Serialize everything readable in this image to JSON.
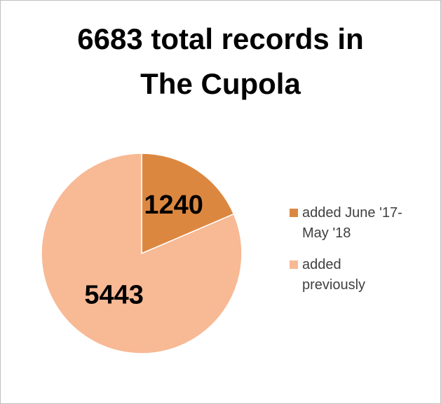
{
  "chart_data": {
    "type": "pie",
    "title_lines": [
      "6683 total records in",
      "The Cupola"
    ],
    "slices": [
      {
        "label": "added June '17-May '18",
        "legend_lines": [
          "added June '17-",
          "May '18"
        ],
        "value": 1240,
        "color": "#dc8740"
      },
      {
        "label": "added previously",
        "legend_lines": [
          "added",
          "previously"
        ],
        "value": 5443,
        "color": "#f8b995"
      }
    ],
    "legend_position": "right"
  }
}
